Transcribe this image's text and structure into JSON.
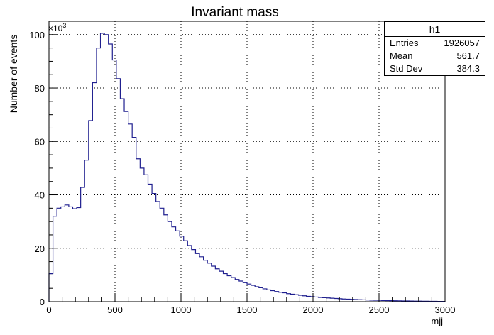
{
  "chart_data": {
    "type": "histogram",
    "title": "Invariant mass",
    "xlabel": "mjj",
    "ylabel": "Number of events",
    "y_multiplier_label": "×10",
    "y_multiplier_exp": "3",
    "xlim": [
      0,
      3000
    ],
    "ylim": [
      0,
      105
    ],
    "y_units_scale": 1000,
    "grid": true,
    "x_ticks": [
      0,
      500,
      1000,
      1500,
      2000,
      2500,
      3000
    ],
    "y_ticks": [
      0,
      20,
      40,
      60,
      80,
      100
    ],
    "bin_width": 30,
    "series": [
      {
        "name": "h1",
        "color": "#1f1f8f",
        "values": [
          10.5,
          32.0,
          35.0,
          35.5,
          36.2,
          35.5,
          34.8,
          35.2,
          42.8,
          53.0,
          67.8,
          82.0,
          95.0,
          100.5,
          100.0,
          96.5,
          90.5,
          83.5,
          76.0,
          71.2,
          66.5,
          61.5,
          53.5,
          50.0,
          47.5,
          44.0,
          40.5,
          37.5,
          35.0,
          32.5,
          30.0,
          28.0,
          26.5,
          24.5,
          22.8,
          21.0,
          19.5,
          18.0,
          16.8,
          15.5,
          14.4,
          13.3,
          12.3,
          11.4,
          10.5,
          9.7,
          9.0,
          8.3,
          7.7,
          7.1,
          6.6,
          6.1,
          5.6,
          5.2,
          4.8,
          4.4,
          4.1,
          3.8,
          3.5,
          3.3,
          3.0,
          2.8,
          2.6,
          2.4,
          2.2,
          2.0,
          1.9,
          1.75,
          1.6,
          1.5,
          1.4,
          1.3,
          1.2,
          1.1,
          1.0,
          0.95,
          0.88,
          0.8,
          0.74,
          0.68,
          0.62,
          0.57,
          0.52,
          0.48,
          0.44,
          0.4,
          0.37,
          0.34,
          0.31,
          0.28,
          0.26,
          0.24,
          0.22,
          0.2,
          0.18,
          0.16,
          0.15,
          0.14,
          0.12,
          0.11
        ]
      }
    ]
  },
  "stats": {
    "title": "h1",
    "rows": [
      {
        "label": "Entries",
        "value": "1926057"
      },
      {
        "label": "Mean",
        "value": "561.7"
      },
      {
        "label": "Std Dev",
        "value": "384.3"
      }
    ]
  }
}
